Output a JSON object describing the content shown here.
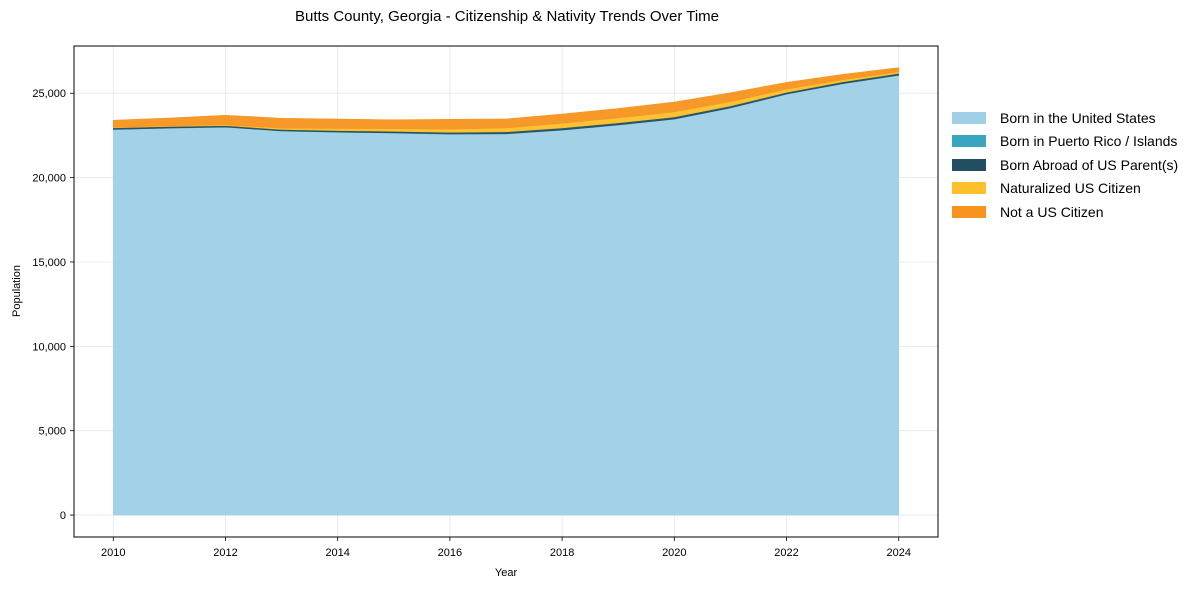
{
  "chart_data": {
    "type": "area",
    "stacked": true,
    "title": "Butts County, Georgia - Citizenship & Nativity Trends Over Time",
    "xlabel": "Year",
    "ylabel": "Population",
    "x": [
      2010,
      2011,
      2012,
      2013,
      2014,
      2015,
      2016,
      2017,
      2018,
      2019,
      2020,
      2021,
      2022,
      2023,
      2024
    ],
    "x_ticks": [
      "2010",
      "2012",
      "2014",
      "2016",
      "2018",
      "2020",
      "2022",
      "2024"
    ],
    "y_ticks": [
      "0",
      "5,000",
      "10,000",
      "15,000",
      "20,000",
      "25,000"
    ],
    "ylim": [
      -1300,
      27800
    ],
    "xlim": [
      2009.3,
      2024.7
    ],
    "grid": true,
    "legend_position": "right-outside",
    "series": [
      {
        "name": "Born in the United States",
        "color": "#9ecfe6",
        "values": [
          22850,
          22930,
          22990,
          22760,
          22690,
          22640,
          22570,
          22590,
          22810,
          23110,
          23460,
          24120,
          24940,
          25560,
          26060
        ]
      },
      {
        "name": "Born in Puerto Rico / Islands",
        "color": "#3aa5c0",
        "values": [
          10,
          10,
          10,
          10,
          10,
          15,
          15,
          15,
          15,
          15,
          15,
          15,
          15,
          15,
          15
        ]
      },
      {
        "name": "Born Abroad of US Parent(s)",
        "color": "#234d60",
        "values": [
          90,
          90,
          85,
          85,
          90,
          90,
          100,
          110,
          120,
          120,
          120,
          110,
          100,
          100,
          100
        ]
      },
      {
        "name": "Naturalized US Citizen",
        "color": "#fdbf2a",
        "values": [
          30,
          40,
          50,
          80,
          120,
          160,
          190,
          230,
          280,
          300,
          300,
          260,
          190,
          130,
          90
        ]
      },
      {
        "name": "Not a US Citizen",
        "color": "#f7931e",
        "values": [
          420,
          460,
          560,
          580,
          560,
          520,
          580,
          530,
          540,
          550,
          580,
          520,
          400,
          310,
          250
        ]
      }
    ]
  }
}
